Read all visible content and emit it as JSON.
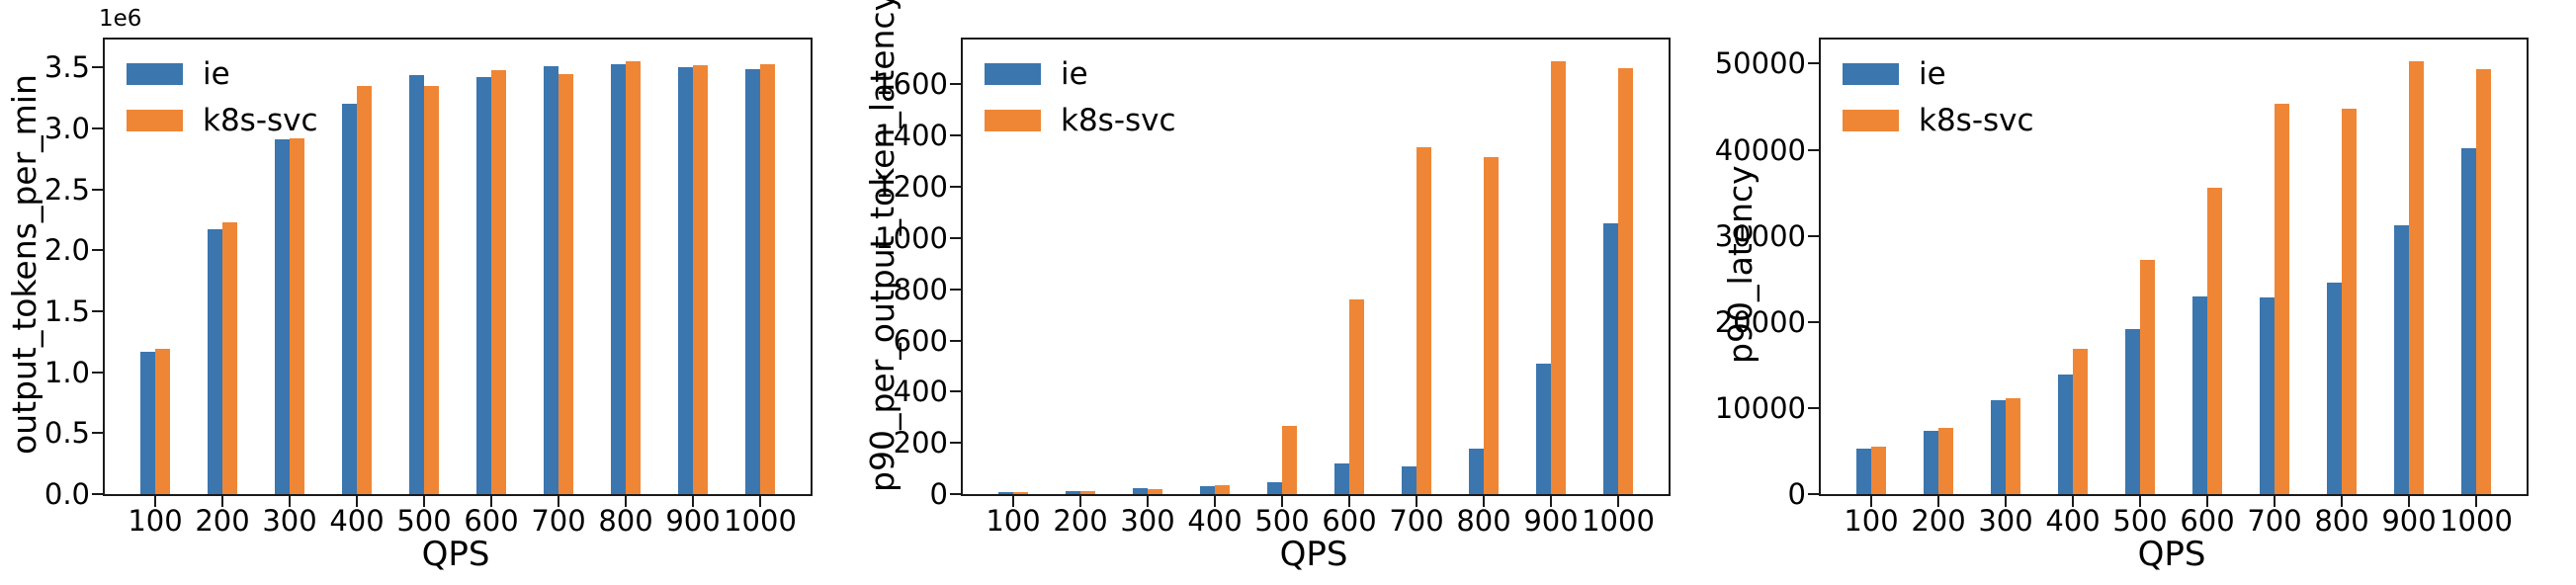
{
  "figure": {
    "background": "#ffffff",
    "spine_color": "#1a1a1a"
  },
  "chart_data": [
    {
      "type": "bar",
      "ylabel": "output_tokens_per_min",
      "xlabel": "QPS",
      "offset_label": "1e6",
      "value_scale": "values are in units of 1e6 (axis offset label)",
      "categories": [
        "100",
        "200",
        "300",
        "400",
        "500",
        "600",
        "700",
        "800",
        "900",
        "1000"
      ],
      "series": [
        {
          "name": "ie",
          "color": "#3b76af",
          "values": [
            1.17,
            2.17,
            2.91,
            3.2,
            3.44,
            3.42,
            3.51,
            3.53,
            3.5,
            3.49
          ]
        },
        {
          "name": "k8s-svc",
          "color": "#ef8636",
          "values": [
            1.19,
            2.23,
            2.92,
            3.35,
            3.35,
            3.48,
            3.45,
            3.55,
            3.52,
            3.53
          ]
        }
      ],
      "ylim": [
        0,
        3.73
      ],
      "yticks": {
        "values": [
          0,
          0.5,
          1.0,
          1.5,
          2.0,
          2.5,
          3.0,
          3.5
        ],
        "labels": [
          "0.0",
          "0.5",
          "1.0",
          "1.5",
          "2.0",
          "2.5",
          "3.0",
          "3.5"
        ]
      },
      "legend": {
        "position": "upper-left",
        "entries": [
          "ie",
          "k8s-svc"
        ]
      },
      "grid": false
    },
    {
      "type": "bar",
      "ylabel": "p90_per_output_token_latency",
      "xlabel": "QPS",
      "categories": [
        "100",
        "200",
        "300",
        "400",
        "500",
        "600",
        "700",
        "800",
        "900",
        "1000"
      ],
      "series": [
        {
          "name": "ie",
          "color": "#3b76af",
          "values": [
            8,
            13,
            22,
            30,
            48,
            118,
            108,
            176,
            510,
            1057
          ]
        },
        {
          "name": "k8s-svc",
          "color": "#ef8636",
          "values": [
            7,
            11,
            20,
            34,
            268,
            760,
            1355,
            1315,
            1690,
            1665
          ]
        }
      ],
      "ylim": [
        0,
        1775
      ],
      "yticks": {
        "values": [
          0,
          200,
          400,
          600,
          800,
          1000,
          1200,
          1400,
          1600
        ],
        "labels": [
          "0",
          "200",
          "400",
          "600",
          "800",
          "1000",
          "1200",
          "1400",
          "1600"
        ]
      },
      "legend": {
        "position": "upper-left",
        "entries": [
          "ie",
          "k8s-svc"
        ]
      },
      "grid": false
    },
    {
      "type": "bar",
      "ylabel": "p90_latency",
      "xlabel": "QPS",
      "categories": [
        "100",
        "200",
        "300",
        "400",
        "500",
        "600",
        "700",
        "800",
        "900",
        "1000"
      ],
      "series": [
        {
          "name": "ie",
          "color": "#3b76af",
          "values": [
            5300,
            7400,
            10900,
            13900,
            19200,
            23000,
            22800,
            24600,
            31200,
            40200
          ]
        },
        {
          "name": "k8s-svc",
          "color": "#ef8636",
          "values": [
            5500,
            7700,
            11100,
            16900,
            27200,
            35600,
            45300,
            44800,
            50300,
            49400
          ]
        }
      ],
      "ylim": [
        0,
        52800
      ],
      "yticks": {
        "values": [
          0,
          10000,
          20000,
          30000,
          40000,
          50000
        ],
        "labels": [
          "0",
          "10000",
          "20000",
          "30000",
          "40000",
          "50000"
        ]
      },
      "legend": {
        "position": "upper-left",
        "entries": [
          "ie",
          "k8s-svc"
        ]
      },
      "grid": false
    }
  ]
}
